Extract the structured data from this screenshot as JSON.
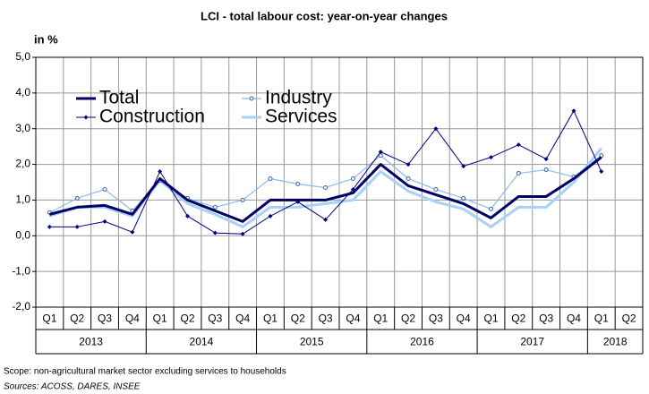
{
  "chart_data": {
    "type": "line",
    "title": "LCI - total labour cost: year-on-year changes",
    "y_unit": "in %",
    "categories": [
      "Q1",
      "Q2",
      "Q3",
      "Q4",
      "Q1",
      "Q2",
      "Q3",
      "Q4",
      "Q1",
      "Q2",
      "Q3",
      "Q4",
      "Q1",
      "Q2",
      "Q3",
      "Q4",
      "Q1",
      "Q2",
      "Q3",
      "Q4",
      "Q1",
      "Q2"
    ],
    "years": [
      "2013",
      "2014",
      "2015",
      "2016",
      "2017",
      "2018"
    ],
    "series": [
      {
        "name": "Total",
        "color": "#000066",
        "marker": "none",
        "values": [
          0.6,
          0.8,
          0.85,
          0.6,
          1.6,
          1.0,
          0.7,
          0.4,
          1.0,
          1.0,
          1.0,
          1.2,
          2.0,
          1.4,
          1.15,
          0.9,
          0.5,
          1.1,
          1.1,
          1.6,
          2.2,
          null
        ]
      },
      {
        "name": "Industry",
        "color": "#8fbbe8",
        "marker": "circle",
        "values": [
          0.65,
          1.05,
          1.3,
          0.7,
          1.55,
          1.05,
          0.8,
          1.0,
          1.6,
          1.45,
          1.35,
          1.6,
          2.25,
          1.6,
          1.3,
          1.05,
          0.75,
          1.75,
          1.85,
          1.65,
          2.25,
          null
        ]
      },
      {
        "name": "Construction",
        "color": "#000080",
        "marker": "diamond",
        "values": [
          0.25,
          0.25,
          0.4,
          0.1,
          1.8,
          0.55,
          0.08,
          0.05,
          0.55,
          0.95,
          0.45,
          1.3,
          2.35,
          2.0,
          3.0,
          1.95,
          2.2,
          2.55,
          2.15,
          3.5,
          1.8,
          null
        ]
      },
      {
        "name": "Services",
        "color": "#a9d0f5",
        "marker": "none",
        "values": [
          0.55,
          0.8,
          0.8,
          0.55,
          1.55,
          0.9,
          0.6,
          0.25,
          0.8,
          0.8,
          0.9,
          1.0,
          1.8,
          1.25,
          0.95,
          0.75,
          0.25,
          0.8,
          0.8,
          1.5,
          2.45,
          null
        ]
      }
    ],
    "ylim": [
      -2,
      5
    ],
    "yticks": [
      {
        "value": -2,
        "label": "-2,0"
      },
      {
        "value": -1,
        "label": "-1,0"
      },
      {
        "value": 0,
        "label": "0,0"
      },
      {
        "value": 1,
        "label": "1,0"
      },
      {
        "value": 2,
        "label": "2,0"
      },
      {
        "value": 3,
        "label": "3,0"
      },
      {
        "value": 4,
        "label": "4,0"
      },
      {
        "value": 5,
        "label": "5,0"
      }
    ],
    "grid": true,
    "legend": "upper-left",
    "notes": [
      "Scope: non-agricultural market sector excluding services to households",
      "Sources: ACOSS, DARES, INSEE"
    ]
  }
}
